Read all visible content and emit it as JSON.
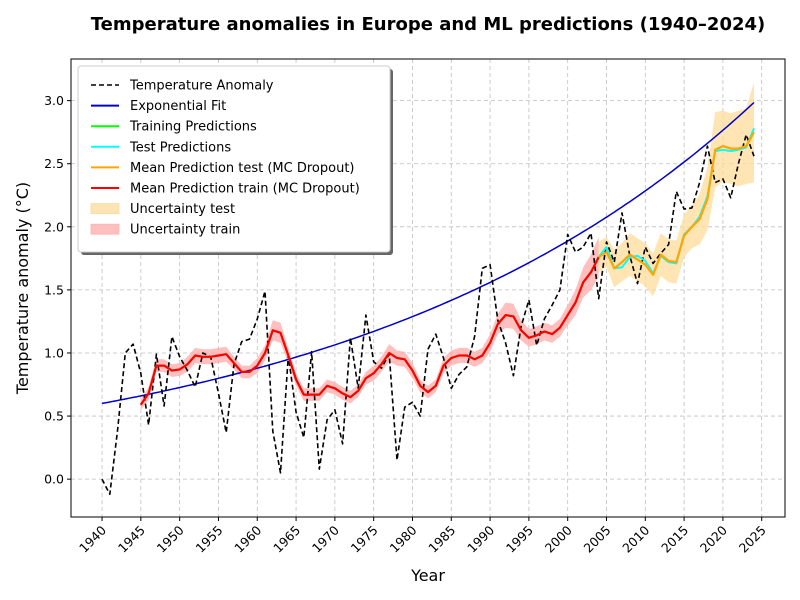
{
  "chart_data": {
    "type": "line",
    "title": "Temperature anomalies in Europe and ML predictions (1940–2024)",
    "xlabel": "Year",
    "ylabel": "Temperature anomaly (°C)",
    "xlim": [
      1936,
      2028
    ],
    "ylim": [
      -0.3,
      3.33
    ],
    "xticks": [
      1940,
      1945,
      1950,
      1955,
      1960,
      1965,
      1970,
      1975,
      1980,
      1985,
      1990,
      1995,
      2000,
      2005,
      2010,
      2015,
      2020,
      2025
    ],
    "yticks": [
      0.0,
      0.5,
      1.0,
      1.5,
      2.0,
      2.5,
      3.0
    ],
    "ytick_labels": [
      "0.0",
      "0.5",
      "1.0",
      "1.5",
      "2.0",
      "2.5",
      "3.0"
    ],
    "grid": true,
    "legend_position": "top-left",
    "colors": {
      "anomaly": "#000000",
      "fit": "#0000cd",
      "train_pred": "#00ff00",
      "test_pred": "#00ffff",
      "mean_test": "#ffa500",
      "mean_train": "#ff0000",
      "band_test": "#fddc9a",
      "band_train": "#ffaaaa"
    },
    "legend": [
      {
        "key": "anomaly",
        "label": "Temperature Anomaly"
      },
      {
        "key": "fit",
        "label": "Exponential Fit"
      },
      {
        "key": "train_pred",
        "label": "Training Predictions"
      },
      {
        "key": "test_pred",
        "label": "Test Predictions"
      },
      {
        "key": "mean_test",
        "label": "Mean Prediction test (MC Dropout)"
      },
      {
        "key": "mean_train",
        "label": "Mean Prediction train (MC Dropout)"
      },
      {
        "key": "band_test",
        "label": "Uncertainty test"
      },
      {
        "key": "band_train",
        "label": "Uncertainty train"
      }
    ],
    "series": {
      "anomaly": {
        "x": [
          1940,
          1941,
          1942,
          1943,
          1944,
          1945,
          1946,
          1947,
          1948,
          1949,
          1950,
          1951,
          1952,
          1953,
          1954,
          1955,
          1956,
          1957,
          1958,
          1959,
          1960,
          1961,
          1962,
          1963,
          1964,
          1965,
          1966,
          1967,
          1968,
          1969,
          1970,
          1971,
          1972,
          1973,
          1974,
          1975,
          1976,
          1977,
          1978,
          1979,
          1980,
          1981,
          1982,
          1983,
          1984,
          1985,
          1986,
          1987,
          1988,
          1989,
          1990,
          1991,
          1992,
          1993,
          1994,
          1995,
          1996,
          1997,
          1998,
          1999,
          2000,
          2001,
          2002,
          2003,
          2004,
          2005,
          2006,
          2007,
          2008,
          2009,
          2010,
          2011,
          2012,
          2013,
          2014,
          2015,
          2016,
          2017,
          2018,
          2019,
          2020,
          2021,
          2022,
          2023,
          2024
        ],
        "y": [
          0.0,
          -0.12,
          0.39,
          1.0,
          1.07,
          0.84,
          0.43,
          0.99,
          0.58,
          1.13,
          0.97,
          0.86,
          0.73,
          1.0,
          0.97,
          0.68,
          0.37,
          0.91,
          1.09,
          1.11,
          1.27,
          1.49,
          0.38,
          0.05,
          0.98,
          0.53,
          0.33,
          1.01,
          0.08,
          0.47,
          0.55,
          0.28,
          1.12,
          0.72,
          1.3,
          0.93,
          0.88,
          0.99,
          0.15,
          0.57,
          0.61,
          0.5,
          1.03,
          1.15,
          0.96,
          0.72,
          0.83,
          0.89,
          1.13,
          1.67,
          1.7,
          1.26,
          1.08,
          0.82,
          1.21,
          1.42,
          1.06,
          1.27,
          1.38,
          1.5,
          1.94,
          1.8,
          1.84,
          1.95,
          1.43,
          1.88,
          1.72,
          2.11,
          1.77,
          1.55,
          1.84,
          1.71,
          1.79,
          1.86,
          2.28,
          2.14,
          2.15,
          2.35,
          2.64,
          2.35,
          2.38,
          2.23,
          2.5,
          2.73,
          2.56
        ]
      },
      "fit": {
        "a": 0.6,
        "b": 0.0191,
        "x0": 1940,
        "x_start": 1940,
        "x_end": 2024
      },
      "train": {
        "x": [
          1945,
          1946,
          1947,
          1948,
          1949,
          1950,
          1951,
          1952,
          1953,
          1954,
          1955,
          1956,
          1957,
          1958,
          1959,
          1960,
          1961,
          1962,
          1963,
          1964,
          1965,
          1966,
          1967,
          1968,
          1969,
          1970,
          1971,
          1972,
          1973,
          1974,
          1975,
          1976,
          1977,
          1978,
          1979,
          1980,
          1981,
          1982,
          1983,
          1984,
          1985,
          1986,
          1987,
          1988,
          1989,
          1990,
          1991,
          1992,
          1993,
          1994,
          1995,
          1996,
          1997,
          1998,
          1999,
          2000,
          2001,
          2002,
          2003,
          2004
        ],
        "y": [
          0.59,
          0.68,
          0.9,
          0.9,
          0.86,
          0.87,
          0.91,
          0.98,
          0.97,
          0.97,
          0.98,
          0.99,
          0.92,
          0.85,
          0.85,
          0.9,
          1.0,
          1.18,
          1.16,
          0.98,
          0.79,
          0.67,
          0.67,
          0.67,
          0.74,
          0.72,
          0.68,
          0.65,
          0.7,
          0.8,
          0.84,
          0.91,
          1.0,
          0.96,
          0.95,
          0.86,
          0.74,
          0.69,
          0.74,
          0.9,
          0.96,
          0.98,
          0.98,
          0.95,
          0.98,
          1.08,
          1.23,
          1.3,
          1.29,
          1.18,
          1.12,
          1.14,
          1.17,
          1.15,
          1.2,
          1.3,
          1.4,
          1.56,
          1.64,
          1.76
        ],
        "band": [
          0.04,
          0.05,
          0.05,
          0.05,
          0.05,
          0.05,
          0.06,
          0.06,
          0.06,
          0.06,
          0.06,
          0.06,
          0.05,
          0.05,
          0.05,
          0.06,
          0.06,
          0.08,
          0.08,
          0.06,
          0.05,
          0.05,
          0.05,
          0.05,
          0.05,
          0.05,
          0.05,
          0.05,
          0.05,
          0.05,
          0.06,
          0.06,
          0.07,
          0.06,
          0.06,
          0.06,
          0.05,
          0.05,
          0.05,
          0.06,
          0.06,
          0.06,
          0.06,
          0.06,
          0.06,
          0.07,
          0.08,
          0.1,
          0.1,
          0.08,
          0.07,
          0.07,
          0.07,
          0.07,
          0.07,
          0.08,
          0.1,
          0.12,
          0.14,
          0.16
        ]
      },
      "test": {
        "x": [
          2004,
          2005,
          2006,
          2007,
          2008,
          2009,
          2010,
          2011,
          2012,
          2013,
          2014,
          2015,
          2016,
          2017,
          2018,
          2019,
          2020,
          2021,
          2022,
          2023,
          2024
        ],
        "y": [
          1.76,
          1.84,
          1.67,
          1.68,
          1.76,
          1.77,
          1.73,
          1.63,
          1.77,
          1.72,
          1.71,
          1.94,
          2.0,
          2.08,
          2.24,
          2.6,
          2.61,
          2.6,
          2.61,
          2.63,
          2.78
        ],
        "mean": [
          1.76,
          1.8,
          1.67,
          1.72,
          1.78,
          1.74,
          1.7,
          1.62,
          1.78,
          1.73,
          1.72,
          1.93,
          2.0,
          2.06,
          2.22,
          2.61,
          2.64,
          2.62,
          2.62,
          2.64,
          2.75
        ],
        "band": [
          0.12,
          0.12,
          0.15,
          0.15,
          0.17,
          0.17,
          0.17,
          0.17,
          0.17,
          0.17,
          0.17,
          0.17,
          0.17,
          0.2,
          0.25,
          0.3,
          0.28,
          0.28,
          0.3,
          0.3,
          0.4
        ]
      }
    }
  }
}
